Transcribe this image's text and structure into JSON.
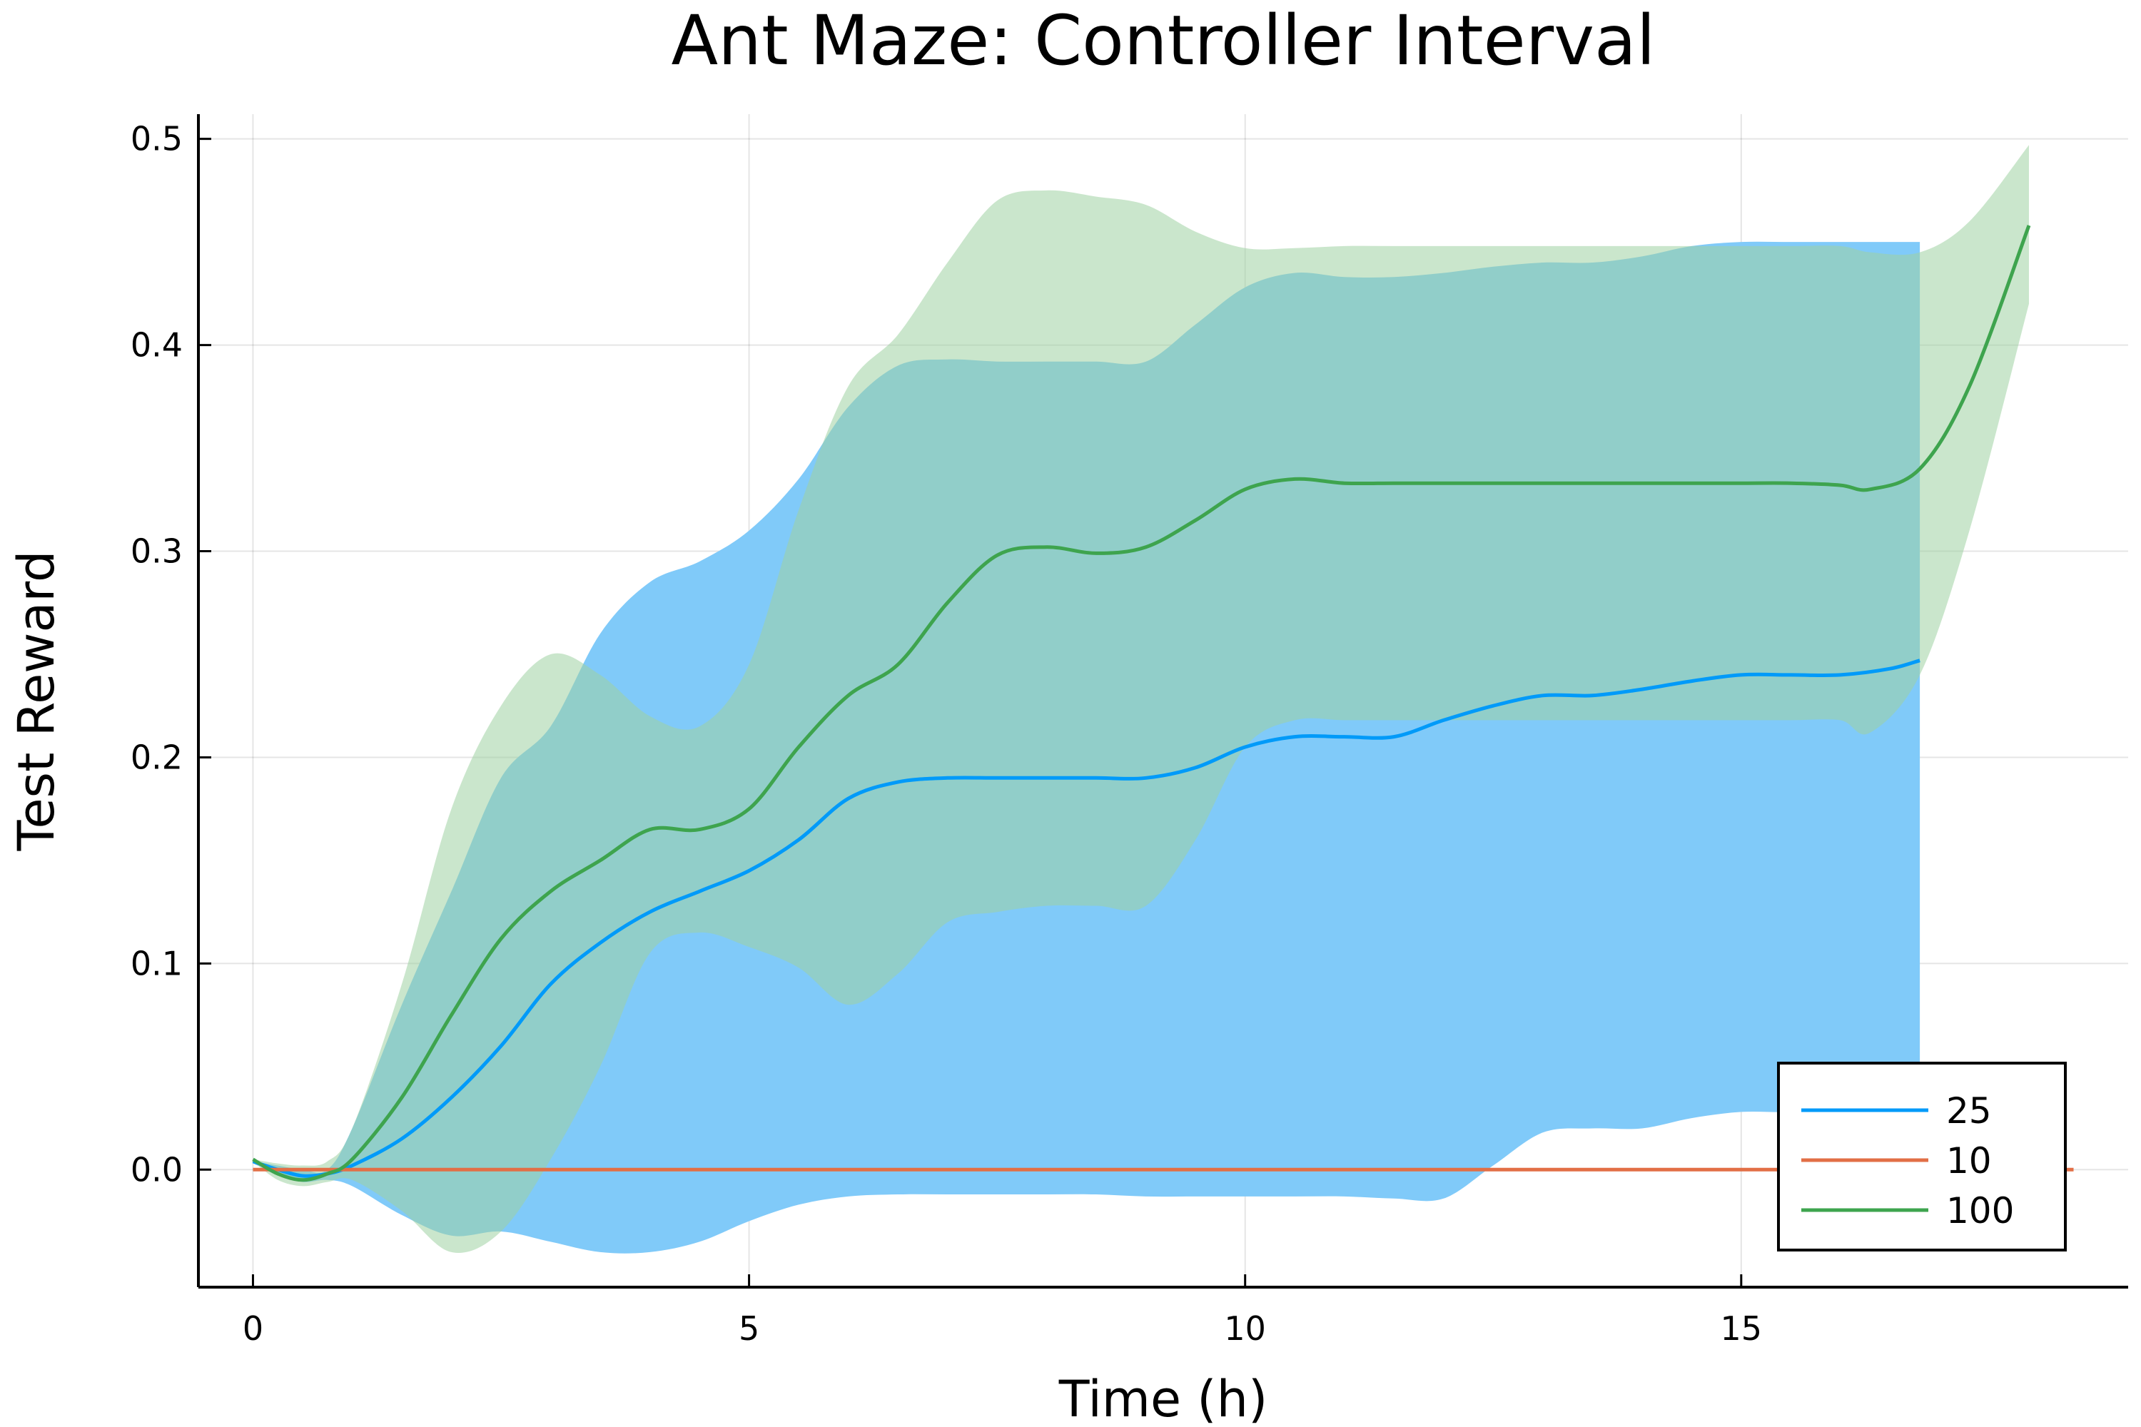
{
  "chart_data": {
    "type": "line",
    "title": "Ant Maze: Controller Interval",
    "xlabel": "Time (h)",
    "ylabel": "Test Reward",
    "xlim": [
      -0.55,
      18.9
    ],
    "ylim": [
      -0.057,
      0.512
    ],
    "xticks": [
      0,
      5,
      10,
      15
    ],
    "xtick_labels": [
      "0",
      "5",
      "10",
      "15"
    ],
    "yticks": [
      0.0,
      0.1,
      0.2,
      0.3,
      0.4,
      0.5
    ],
    "ytick_labels": [
      "0.0",
      "0.1",
      "0.2",
      "0.3",
      "0.4",
      "0.5"
    ],
    "grid": true,
    "legend_position": "bottom-right",
    "series": [
      {
        "name": "25",
        "color": "#009af9",
        "band_color": "#80caf9",
        "x": [
          0,
          0.25,
          0.5,
          0.75,
          1.0,
          1.5,
          2.0,
          2.5,
          3.0,
          3.5,
          4.0,
          4.5,
          5.0,
          5.5,
          6.0,
          6.5,
          7.0,
          7.5,
          8.0,
          8.5,
          9.0,
          9.5,
          10.0,
          10.5,
          11.0,
          11.5,
          12.0,
          12.5,
          13.0,
          13.5,
          14.0,
          14.5,
          15.0,
          15.5,
          16.0,
          16.5,
          16.8
        ],
        "mean": [
          0.004,
          0.0,
          -0.003,
          -0.002,
          0.002,
          0.015,
          0.035,
          0.06,
          0.09,
          0.11,
          0.125,
          0.135,
          0.145,
          0.16,
          0.18,
          0.188,
          0.19,
          0.19,
          0.19,
          0.19,
          0.19,
          0.195,
          0.205,
          0.21,
          0.21,
          0.21,
          0.218,
          0.225,
          0.23,
          0.23,
          0.233,
          0.237,
          0.24,
          0.24,
          0.24,
          0.243,
          0.247
        ],
        "upper": [
          0.004,
          0.002,
          0.0,
          0.0,
          0.02,
          0.08,
          0.135,
          0.19,
          0.215,
          0.26,
          0.285,
          0.295,
          0.31,
          0.335,
          0.37,
          0.39,
          0.393,
          0.392,
          0.392,
          0.392,
          0.392,
          0.41,
          0.428,
          0.435,
          0.433,
          0.433,
          0.435,
          0.438,
          0.44,
          0.44,
          0.443,
          0.448,
          0.45,
          0.45,
          0.45,
          0.45,
          0.45
        ],
        "lower": [
          0.003,
          -0.002,
          -0.006,
          -0.005,
          -0.008,
          -0.022,
          -0.032,
          -0.03,
          -0.035,
          -0.04,
          -0.04,
          -0.035,
          -0.025,
          -0.017,
          -0.013,
          -0.012,
          -0.012,
          -0.012,
          -0.012,
          -0.012,
          -0.013,
          -0.013,
          -0.013,
          -0.013,
          -0.013,
          -0.014,
          -0.014,
          0.002,
          0.018,
          0.02,
          0.02,
          0.025,
          0.028,
          0.028,
          0.03,
          0.04,
          0.05
        ]
      },
      {
        "name": "10",
        "color": "#e26f46",
        "x": [
          0,
          18.35
        ],
        "mean": [
          0.0,
          0.0
        ]
      },
      {
        "name": "100",
        "color": "#3ea44e",
        "band_color": "#9ed1a2",
        "x": [
          0,
          0.25,
          0.5,
          0.75,
          1.0,
          1.5,
          2.0,
          2.5,
          3.0,
          3.5,
          4.0,
          4.5,
          5.0,
          5.5,
          6.0,
          6.5,
          7.0,
          7.5,
          8.0,
          8.5,
          9.0,
          9.5,
          10.0,
          10.5,
          11.0,
          11.5,
          12.0,
          12.5,
          13.0,
          13.5,
          14.0,
          14.5,
          15.0,
          15.5,
          16.0,
          16.3,
          16.8,
          17.3,
          17.9
        ],
        "mean": [
          0.005,
          -0.002,
          -0.005,
          -0.002,
          0.005,
          0.035,
          0.075,
          0.112,
          0.135,
          0.15,
          0.165,
          0.165,
          0.175,
          0.205,
          0.23,
          0.245,
          0.275,
          0.298,
          0.302,
          0.299,
          0.302,
          0.315,
          0.33,
          0.335,
          0.333,
          0.333,
          0.333,
          0.333,
          0.333,
          0.333,
          0.333,
          0.333,
          0.333,
          0.333,
          0.332,
          0.33,
          0.34,
          0.38,
          0.458
        ],
        "upper": [
          0.005,
          0.003,
          0.002,
          0.004,
          0.02,
          0.09,
          0.175,
          0.225,
          0.25,
          0.24,
          0.22,
          0.215,
          0.245,
          0.32,
          0.38,
          0.405,
          0.44,
          0.47,
          0.475,
          0.472,
          0.468,
          0.455,
          0.447,
          0.447,
          0.448,
          0.448,
          0.448,
          0.448,
          0.448,
          0.448,
          0.448,
          0.448,
          0.448,
          0.448,
          0.448,
          0.445,
          0.445,
          0.46,
          0.497
        ],
        "lower": [
          0.004,
          -0.005,
          -0.008,
          -0.006,
          -0.005,
          -0.02,
          -0.04,
          -0.03,
          0.005,
          0.05,
          0.105,
          0.115,
          0.108,
          0.098,
          0.08,
          0.095,
          0.12,
          0.125,
          0.128,
          0.128,
          0.128,
          0.16,
          0.205,
          0.218,
          0.218,
          0.218,
          0.218,
          0.218,
          0.218,
          0.218,
          0.218,
          0.218,
          0.218,
          0.218,
          0.218,
          0.212,
          0.24,
          0.31,
          0.42
        ]
      }
    ]
  }
}
